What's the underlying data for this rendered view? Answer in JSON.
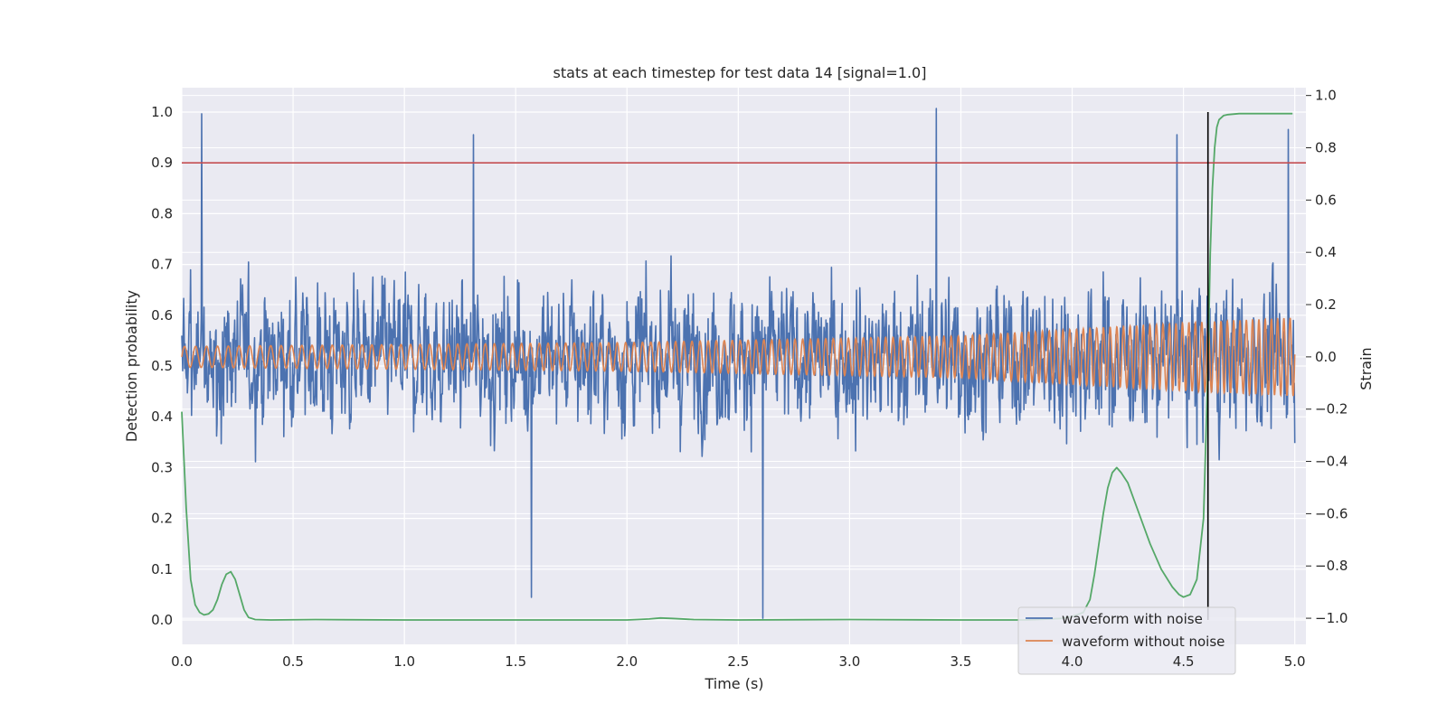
{
  "chart_data": {
    "type": "line",
    "title": "stats at each timestep for test data 14 [signal=1.0]",
    "xlabel": "Time (s)",
    "ylabel_left": "Detection probability",
    "ylabel_right": "Strain",
    "xlim": [
      0.0,
      5.05
    ],
    "ylim_left": [
      -0.048,
      1.048
    ],
    "ylim_right": [
      -1.1,
      1.03
    ],
    "x_ticks": [
      "0.0",
      "0.5",
      "1.0",
      "1.5",
      "2.0",
      "2.5",
      "3.0",
      "3.5",
      "4.0",
      "4.5",
      "5.0"
    ],
    "y_ticks_left": [
      "0.0",
      "0.1",
      "0.2",
      "0.3",
      "0.4",
      "0.5",
      "0.6",
      "0.7",
      "0.8",
      "0.9",
      "1.0"
    ],
    "y_ticks_right": [
      "−1.0",
      "−0.8",
      "−0.6",
      "−0.4",
      "−0.2",
      "0.0",
      "0.2",
      "0.4",
      "0.6",
      "0.8",
      "1.0"
    ],
    "grid": true,
    "legend_position": "lower-right",
    "colors": {
      "background": "#eaeaf2",
      "grid": "#ffffff",
      "noisy": "#4c72b0",
      "clean": "#dd8452",
      "probability": "#55a868",
      "threshold": "#c44e52",
      "trigger": "#000000"
    },
    "series": [
      {
        "name": "waveform with noise",
        "axis": "right",
        "note_style": "dense noisy strain trace",
        "x_range": [
          0.0,
          5.0
        ],
        "amplitude_std": 0.22,
        "extremes": [
          {
            "x": 0.09,
            "y": 0.93
          },
          {
            "x": 1.31,
            "y": 0.85
          },
          {
            "x": 1.57,
            "y": -0.92
          },
          {
            "x": 2.61,
            "y": -1.0
          },
          {
            "x": 3.39,
            "y": 0.95
          },
          {
            "x": 4.47,
            "y": 0.85
          },
          {
            "x": 4.97,
            "y": 0.87
          }
        ]
      },
      {
        "name": "waveform without noise",
        "axis": "right",
        "note_style": "chirp",
        "x_range": [
          0.0,
          5.0
        ],
        "amplitude": [
          [
            0.0,
            0.04
          ],
          [
            2.0,
            0.055
          ],
          [
            3.5,
            0.08
          ],
          [
            4.5,
            0.13
          ],
          [
            5.0,
            0.15
          ]
        ],
        "cycles_per_second": [
          [
            0.0,
            20
          ],
          [
            5.0,
            36
          ]
        ]
      },
      {
        "name": "",
        "axis": "left",
        "x": [
          0.0,
          0.02,
          0.04,
          0.06,
          0.08,
          0.1,
          0.12,
          0.14,
          0.16,
          0.18,
          0.2,
          0.22,
          0.24,
          0.26,
          0.28,
          0.3,
          0.33,
          0.4,
          0.6,
          1.0,
          1.5,
          2.0,
          2.1,
          2.15,
          2.2,
          2.3,
          2.5,
          3.0,
          3.5,
          3.8,
          3.95,
          4.0,
          4.05,
          4.08,
          4.1,
          4.12,
          4.14,
          4.16,
          4.18,
          4.2,
          4.22,
          4.25,
          4.3,
          4.35,
          4.4,
          4.45,
          4.48,
          4.5,
          4.53,
          4.56,
          4.59,
          4.61,
          4.62,
          4.63,
          4.64,
          4.65,
          4.66,
          4.68,
          4.7,
          4.75,
          4.8,
          4.9,
          4.99
        ],
        "y": [
          0.41,
          0.22,
          0.08,
          0.03,
          0.015,
          0.01,
          0.012,
          0.02,
          0.04,
          0.07,
          0.09,
          0.095,
          0.08,
          0.05,
          0.02,
          0.005,
          0.001,
          0.0,
          0.001,
          0.0,
          0.0,
          0.0,
          0.002,
          0.004,
          0.003,
          0.001,
          0.0,
          0.001,
          0.0,
          0.0,
          0.003,
          0.007,
          0.015,
          0.04,
          0.09,
          0.15,
          0.21,
          0.26,
          0.29,
          0.3,
          0.29,
          0.27,
          0.21,
          0.15,
          0.1,
          0.065,
          0.05,
          0.045,
          0.05,
          0.08,
          0.2,
          0.5,
          0.72,
          0.85,
          0.93,
          0.97,
          0.985,
          0.993,
          0.995,
          0.997,
          0.997,
          0.997,
          0.997
        ]
      }
    ],
    "threshold": {
      "axis": "left",
      "y": 0.9
    },
    "trigger_line": {
      "x": 4.61,
      "y_range": [
        0.0,
        1.0
      ]
    }
  }
}
